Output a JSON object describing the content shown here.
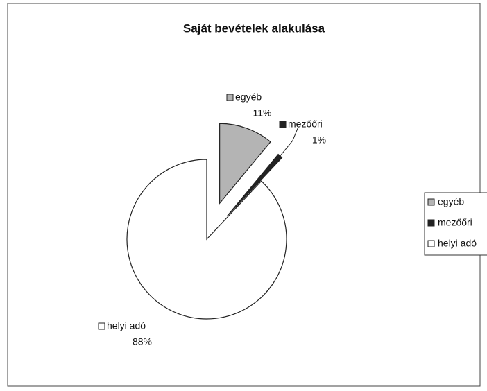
{
  "chart_data": {
    "type": "pie",
    "title": "Saját bevételek alakulása",
    "categories": [
      "egyéb",
      "mezőőri",
      "helyi adó"
    ],
    "values": [
      11,
      1,
      88
    ],
    "value_labels": [
      "11%",
      "1%",
      "88%"
    ],
    "colors": [
      "#b4b4b4",
      "#222222",
      "#ffffff"
    ],
    "legend": "right"
  }
}
